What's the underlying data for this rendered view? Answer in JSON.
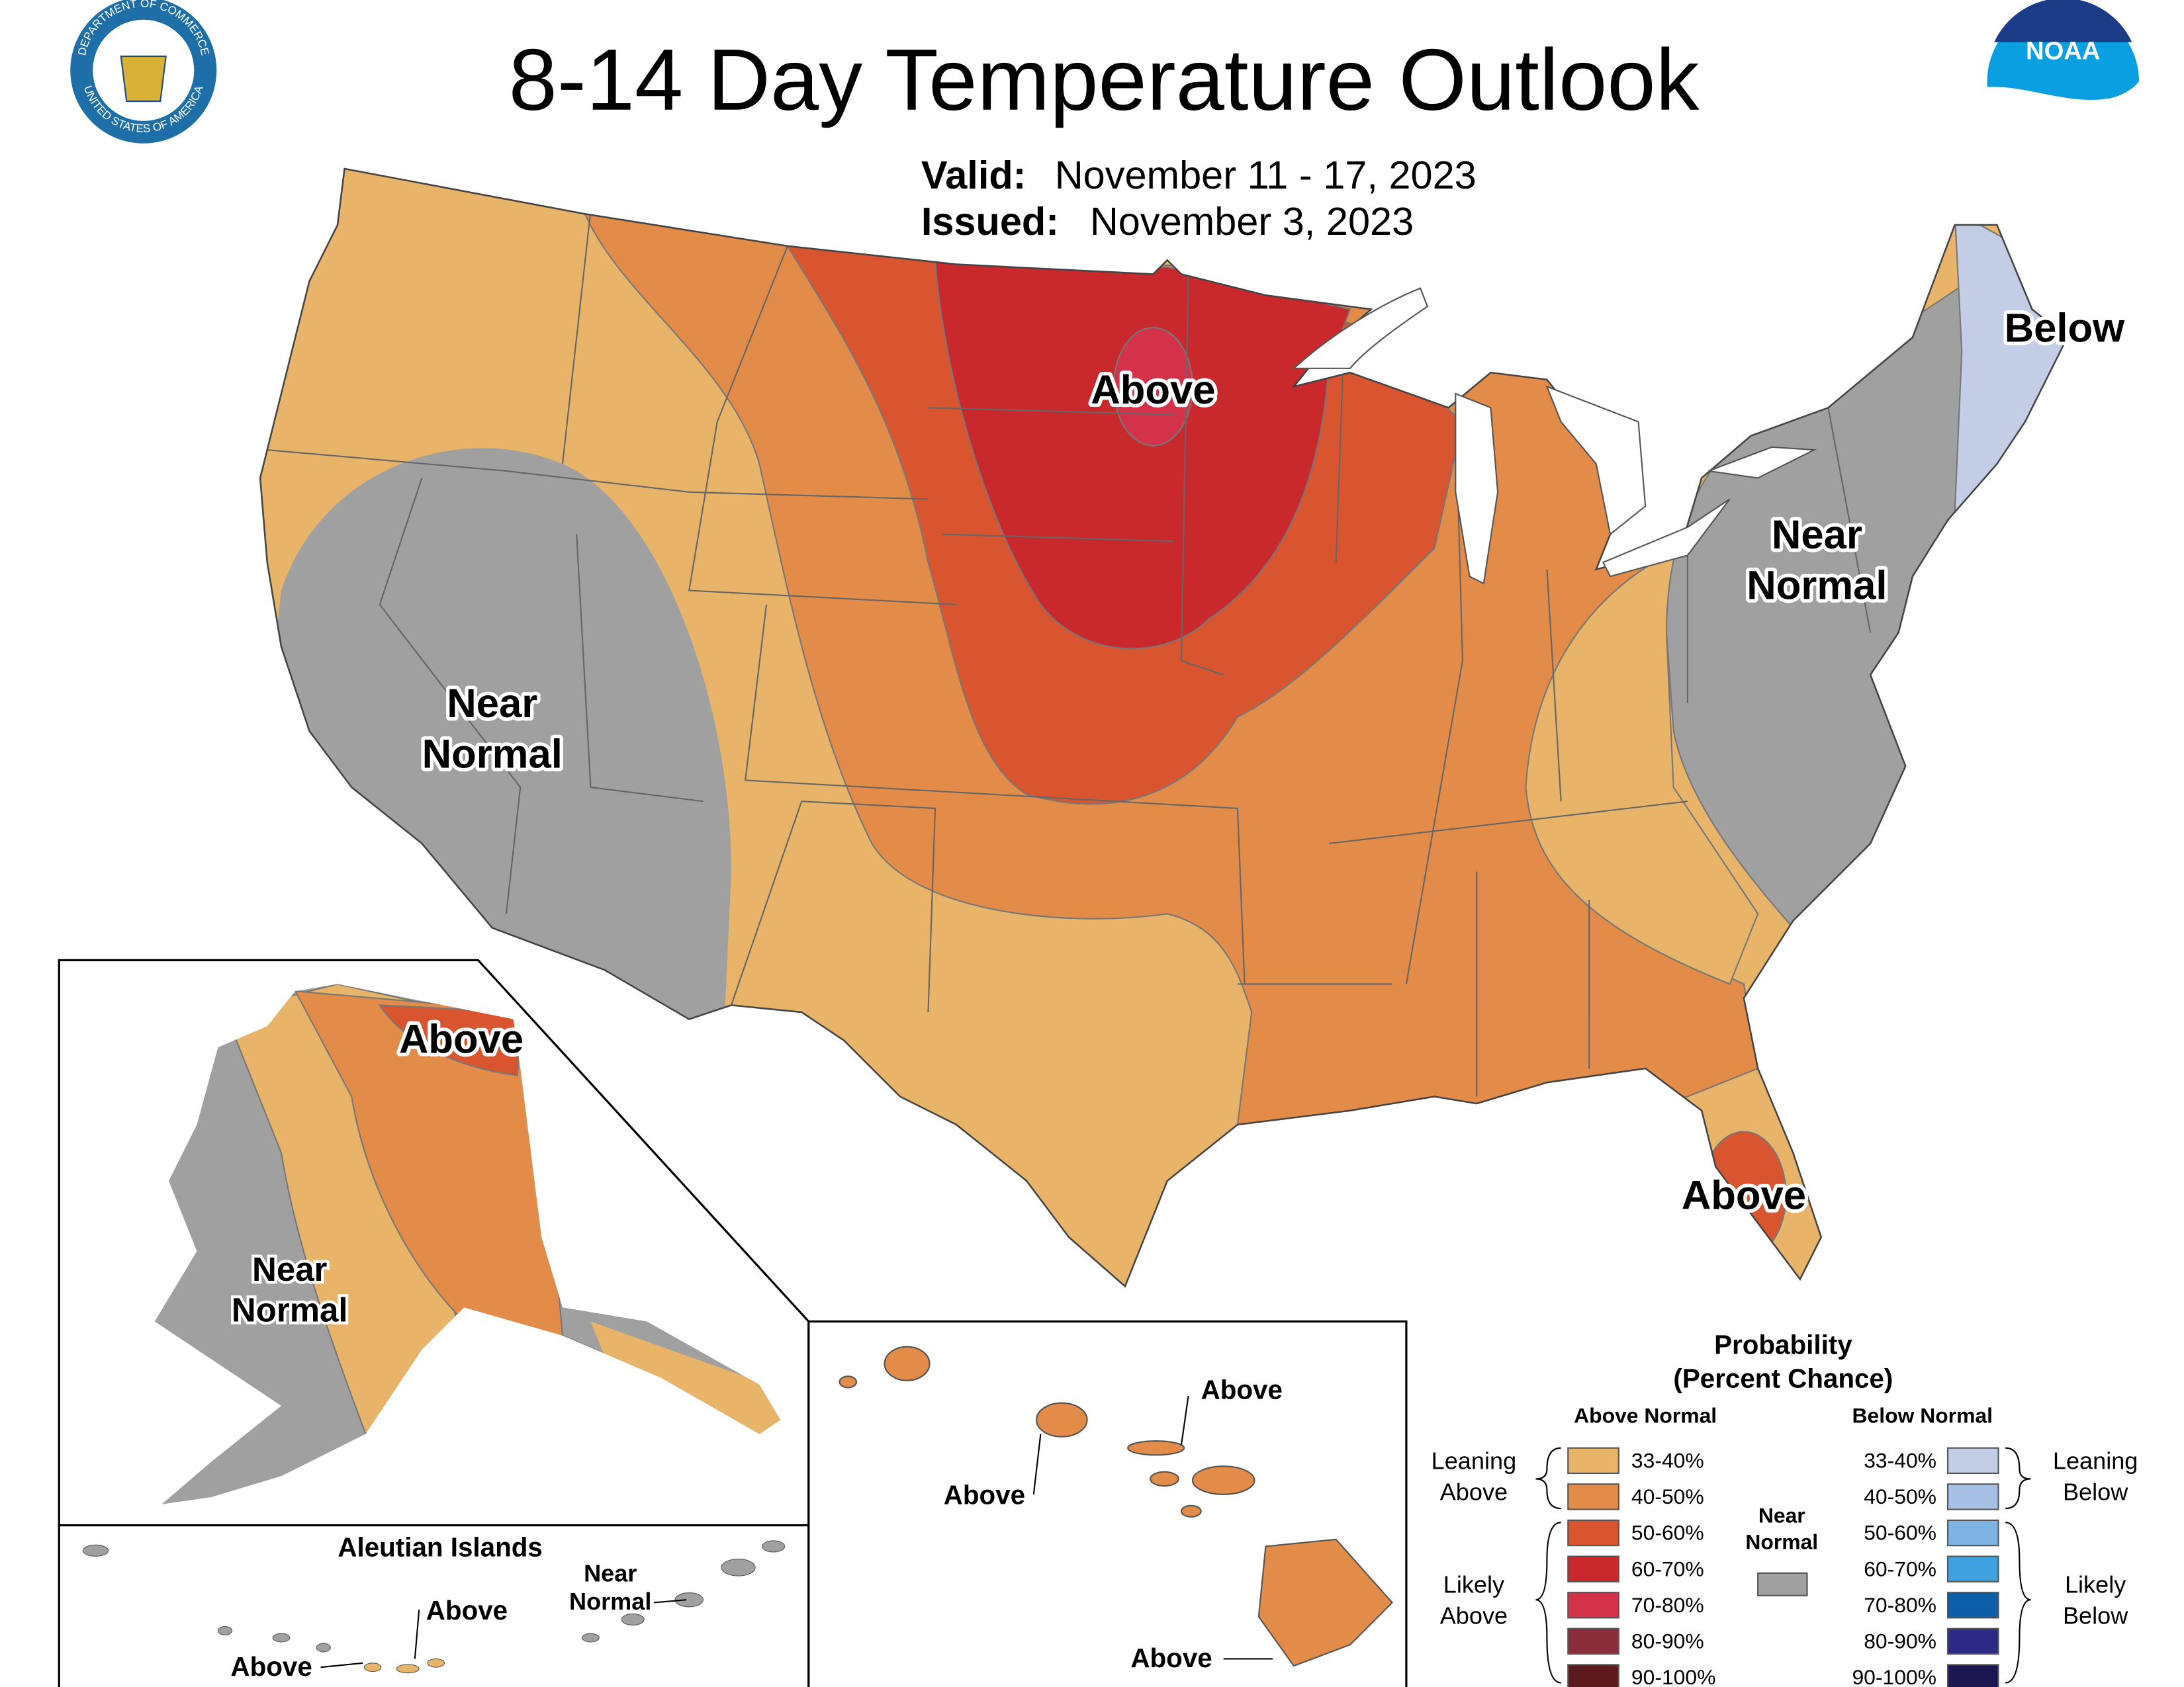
{
  "header": {
    "title": "8-14 Day Temperature Outlook",
    "valid_label": "Valid:",
    "valid": "November 11 - 17, 2023",
    "issued_label": "Issued:",
    "issued": "November 3, 2023"
  },
  "logos": {
    "seal_top": "DEPARTMENT OF COMMERCE",
    "seal_bottom": "UNITED STATES OF AMERICA",
    "noaa": "NOAA"
  },
  "conus_labels": [
    {
      "lines": [
        "Above"
      ]
    },
    {
      "lines": [
        "Near",
        "Normal"
      ]
    },
    {
      "lines": [
        "Near",
        "Normal"
      ]
    },
    {
      "lines": [
        "Below"
      ]
    },
    {
      "lines": [
        "Above"
      ]
    }
  ],
  "alaska_labels": [
    {
      "lines": [
        "Above"
      ]
    },
    {
      "lines": [
        "Near",
        "Normal"
      ]
    }
  ],
  "aleutian": {
    "title": "Aleutian Islands",
    "labels": [
      {
        "lines": [
          "Above"
        ]
      },
      {
        "lines": [
          "Above"
        ]
      },
      {
        "lines": [
          "Near",
          "Normal"
        ]
      }
    ]
  },
  "hawaii_labels": [
    {
      "lines": [
        "Above"
      ]
    },
    {
      "lines": [
        "Above"
      ]
    },
    {
      "lines": [
        "Above"
      ]
    }
  ],
  "legend": {
    "title": [
      "Probability",
      "(Percent Chance)"
    ],
    "above": {
      "heading": "Above Normal",
      "items": [
        {
          "label": "33-40%",
          "color": "#e8b46a"
        },
        {
          "label": "40-50%",
          "color": "#e38b48"
        },
        {
          "label": "50-60%",
          "color": "#d8552f"
        },
        {
          "label": "60-70%",
          "color": "#c9292d"
        },
        {
          "label": "70-80%",
          "color": "#d4324a"
        },
        {
          "label": "80-90%",
          "color": "#8b2c3a"
        },
        {
          "label": "90-100%",
          "color": "#5c1a1e"
        }
      ]
    },
    "below": {
      "heading": "Below Normal",
      "items": [
        {
          "label": "33-40%",
          "color": "#c3cde6"
        },
        {
          "label": "40-50%",
          "color": "#a6bfe3"
        },
        {
          "label": "50-60%",
          "color": "#7fb3e3"
        },
        {
          "label": "60-70%",
          "color": "#3fa2df"
        },
        {
          "label": "70-80%",
          "color": "#0d5ea8"
        },
        {
          "label": "80-90%",
          "color": "#2d2a86"
        },
        {
          "label": "90-100%",
          "color": "#1c1650"
        }
      ]
    },
    "near": {
      "lines": [
        "Near",
        "Normal"
      ],
      "color": "#a0a0a0"
    },
    "groups": {
      "leaning_above": [
        "Leaning",
        "Above"
      ],
      "likely_above": [
        "Likely",
        "Above"
      ],
      "leaning_below": [
        "Leaning",
        "Below"
      ],
      "likely_below": [
        "Likely",
        "Below"
      ]
    }
  }
}
